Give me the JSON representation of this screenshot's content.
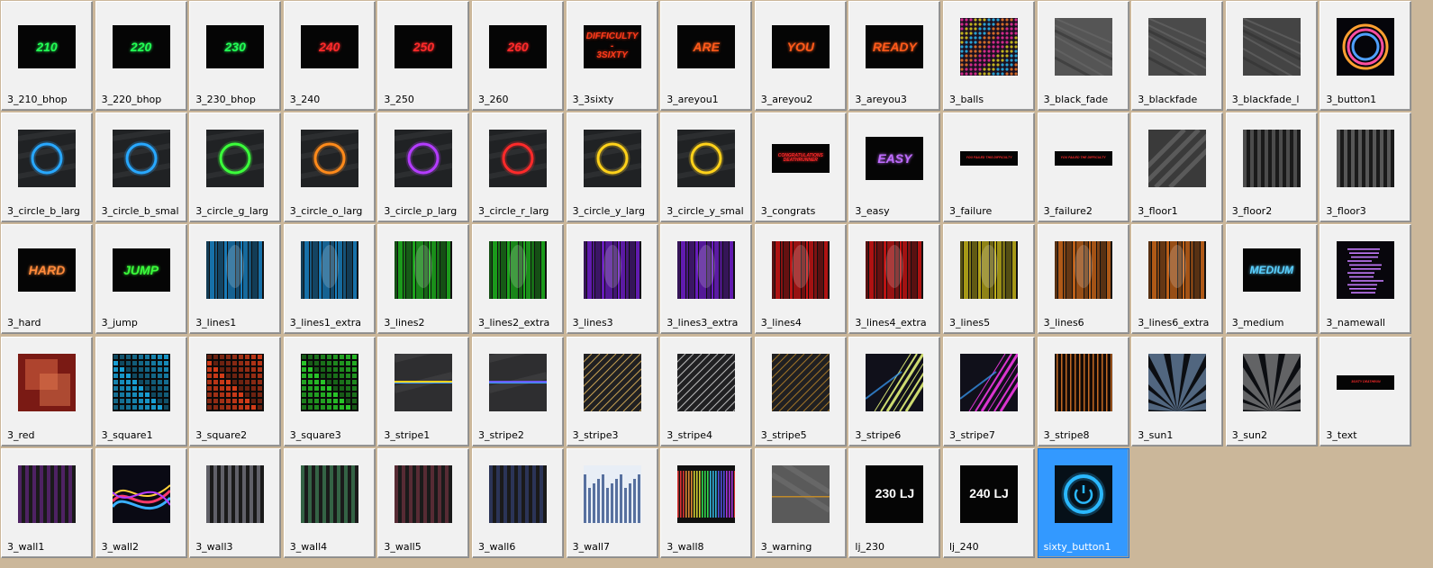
{
  "selected": "sixty_button1",
  "items": [
    {
      "label": "3_210_bhop",
      "kind": "text",
      "text": "210",
      "color": "#22ff55",
      "shape": "short"
    },
    {
      "label": "3_220_bhop",
      "kind": "text",
      "text": "220",
      "color": "#22ff55",
      "shape": "short"
    },
    {
      "label": "3_230_bhop",
      "kind": "text",
      "text": "230",
      "color": "#22ff55",
      "shape": "short"
    },
    {
      "label": "3_240",
      "kind": "text",
      "text": "240",
      "color": "#ff2a2a",
      "shape": "short"
    },
    {
      "label": "3_250",
      "kind": "text",
      "text": "250",
      "color": "#ff2a2a",
      "shape": "short"
    },
    {
      "label": "3_260",
      "kind": "text",
      "text": "260",
      "color": "#ff2a2a",
      "shape": "short"
    },
    {
      "label": "3_3sixty",
      "kind": "text",
      "text": "DIFFICULTY\n-\n3SIXTY",
      "color": "#ff3a1a",
      "shape": "short"
    },
    {
      "label": "3_areyou1",
      "kind": "text",
      "text": "ARE",
      "color": "#ff5a1a",
      "shape": "short"
    },
    {
      "label": "3_areyou2",
      "kind": "text",
      "text": "YOU",
      "color": "#ff5a1a",
      "shape": "short"
    },
    {
      "label": "3_areyou3",
      "kind": "text",
      "text": "READY",
      "color": "#ff5a1a",
      "shape": "short"
    },
    {
      "label": "3_balls",
      "kind": "balls",
      "color": "#c0b020"
    },
    {
      "label": "3_black_fade",
      "kind": "brushed",
      "color": "#555555"
    },
    {
      "label": "3_blackfade",
      "kind": "brushed",
      "color": "#4a4a4a"
    },
    {
      "label": "3_blackfade_l",
      "kind": "brushed",
      "color": "#444444"
    },
    {
      "label": "3_button1",
      "kind": "rings",
      "color": "#ff4fa0"
    },
    {
      "label": "3_circle_b_larg",
      "kind": "circle",
      "color": "#29a8ff"
    },
    {
      "label": "3_circle_b_smal",
      "kind": "circle",
      "color": "#29a8ff"
    },
    {
      "label": "3_circle_g_larg",
      "kind": "circle",
      "color": "#3bff3b"
    },
    {
      "label": "3_circle_o_larg",
      "kind": "circle",
      "color": "#ff8a1a"
    },
    {
      "label": "3_circle_p_larg",
      "kind": "circle",
      "color": "#b43cff"
    },
    {
      "label": "3_circle_r_larg",
      "kind": "circle",
      "color": "#ff2a2a"
    },
    {
      "label": "3_circle_y_larg",
      "kind": "circle",
      "color": "#ffd21a"
    },
    {
      "label": "3_circle_y_smal",
      "kind": "circle",
      "color": "#ffd21a"
    },
    {
      "label": "3_congrats",
      "kind": "text",
      "text": "CONGRATULATIONS\nDEATHRUNNER",
      "color": "#ff2a2a",
      "shape": "vshort",
      "small": true
    },
    {
      "label": "3_easy",
      "kind": "text",
      "text": "EASY",
      "color": "#c06cff",
      "shape": "short"
    },
    {
      "label": "3_failure",
      "kind": "text",
      "text": "YOU FAILED THIS DIFFICULTY",
      "color": "#ff2a2a",
      "shape": "bar",
      "tiny": true
    },
    {
      "label": "3_failure2",
      "kind": "text",
      "text": "YOU FAILED THE DIFFICULTY",
      "color": "#ff2a2a",
      "shape": "bar",
      "tiny": true
    },
    {
      "label": "3_floor1",
      "kind": "diag",
      "color": "#666666"
    },
    {
      "label": "3_floor2",
      "kind": "vstripes",
      "color": "#777777"
    },
    {
      "label": "3_floor3",
      "kind": "vstripes",
      "color": "#8a8a8a"
    },
    {
      "label": "3_hard",
      "kind": "text",
      "text": "HARD",
      "color": "#ff8a3a",
      "shape": "short"
    },
    {
      "label": "3_jump",
      "kind": "text",
      "text": "JUMP",
      "color": "#3bff3b",
      "shape": "short"
    },
    {
      "label": "3_lines1",
      "kind": "lines",
      "color": "#1a8fd8"
    },
    {
      "label": "3_lines1_extra",
      "kind": "lines",
      "color": "#1a8fd8"
    },
    {
      "label": "3_lines2",
      "kind": "lines",
      "color": "#1fc41f"
    },
    {
      "label": "3_lines2_extra",
      "kind": "lines",
      "color": "#1fc41f"
    },
    {
      "label": "3_lines3",
      "kind": "lines",
      "color": "#7a1fe0"
    },
    {
      "label": "3_lines3_extra",
      "kind": "lines",
      "color": "#7a1fe0"
    },
    {
      "label": "3_lines4",
      "kind": "lines",
      "color": "#e01414"
    },
    {
      "label": "3_lines4_extra",
      "kind": "lines",
      "color": "#e01414"
    },
    {
      "label": "3_lines5",
      "kind": "lines",
      "color": "#d4c21a"
    },
    {
      "label": "3_lines6",
      "kind": "lines",
      "color": "#e0701a"
    },
    {
      "label": "3_lines6_extra",
      "kind": "lines",
      "color": "#e0701a"
    },
    {
      "label": "3_medium",
      "kind": "text",
      "text": "MEDIUM",
      "color": "#5ad0ff",
      "shape": "short"
    },
    {
      "label": "3_namewall",
      "kind": "namewall",
      "color": "#c57cff"
    },
    {
      "label": "3_red",
      "kind": "red",
      "color": "#c0402a"
    },
    {
      "label": "3_square1",
      "kind": "squares",
      "color": "#1aa8e0"
    },
    {
      "label": "3_square2",
      "kind": "squares",
      "color": "#e0401a"
    },
    {
      "label": "3_square3",
      "kind": "squares",
      "color": "#2ad02a"
    },
    {
      "label": "3_stripe1",
      "kind": "stripe",
      "color": "#ffd21a"
    },
    {
      "label": "3_stripe2",
      "kind": "stripe",
      "color": "#6a5aff"
    },
    {
      "label": "3_stripe3",
      "kind": "diaglines",
      "color": "#f0c060"
    },
    {
      "label": "3_stripe4",
      "kind": "diaglines",
      "color": "#e0e0e0"
    },
    {
      "label": "3_stripe5",
      "kind": "diaglines",
      "color": "#c08a2a"
    },
    {
      "label": "3_stripe6",
      "kind": "glowdiag",
      "color": "#f0ff80"
    },
    {
      "label": "3_stripe7",
      "kind": "glowdiag",
      "color": "#ff3cf0"
    },
    {
      "label": "3_stripe8",
      "kind": "vbars",
      "color": "#e07a2a"
    },
    {
      "label": "3_sun1",
      "kind": "sun",
      "color": "#8aaed8"
    },
    {
      "label": "3_sun2",
      "kind": "sun",
      "color": "#aaaaaa"
    },
    {
      "label": "3_text",
      "kind": "text",
      "text": "3SIXTY DEATHRUN",
      "color": "#ff2a2a",
      "shape": "bar",
      "tiny": true
    },
    {
      "label": "3_wall1",
      "kind": "vstripes",
      "color": "#7a2aa0"
    },
    {
      "label": "3_wall2",
      "kind": "wave",
      "color": "#ff6a3a"
    },
    {
      "label": "3_wall3",
      "kind": "vstripes",
      "color": "#9a9aaa"
    },
    {
      "label": "3_wall4",
      "kind": "vstripes",
      "color": "#4aa06a"
    },
    {
      "label": "3_wall5",
      "kind": "vstripes",
      "color": "#8a3a4a"
    },
    {
      "label": "3_wall6",
      "kind": "vstripes",
      "color": "#3a4a8a"
    },
    {
      "label": "3_wall7",
      "kind": "wall7",
      "color": "#8ab8ff"
    },
    {
      "label": "3_wall8",
      "kind": "wall8",
      "color": "#3aff5a"
    },
    {
      "label": "3_warning",
      "kind": "warning",
      "color": "#c08a2a"
    },
    {
      "label": "lj_230",
      "kind": "text",
      "text": "230 LJ",
      "color": "#ffffff",
      "shape": "normal",
      "plain": true
    },
    {
      "label": "lj_240",
      "kind": "text",
      "text": "240 LJ",
      "color": "#ffffff",
      "shape": "normal",
      "plain": true
    },
    {
      "label": "sixty_button1",
      "kind": "power",
      "color": "#2ab8ff"
    }
  ]
}
